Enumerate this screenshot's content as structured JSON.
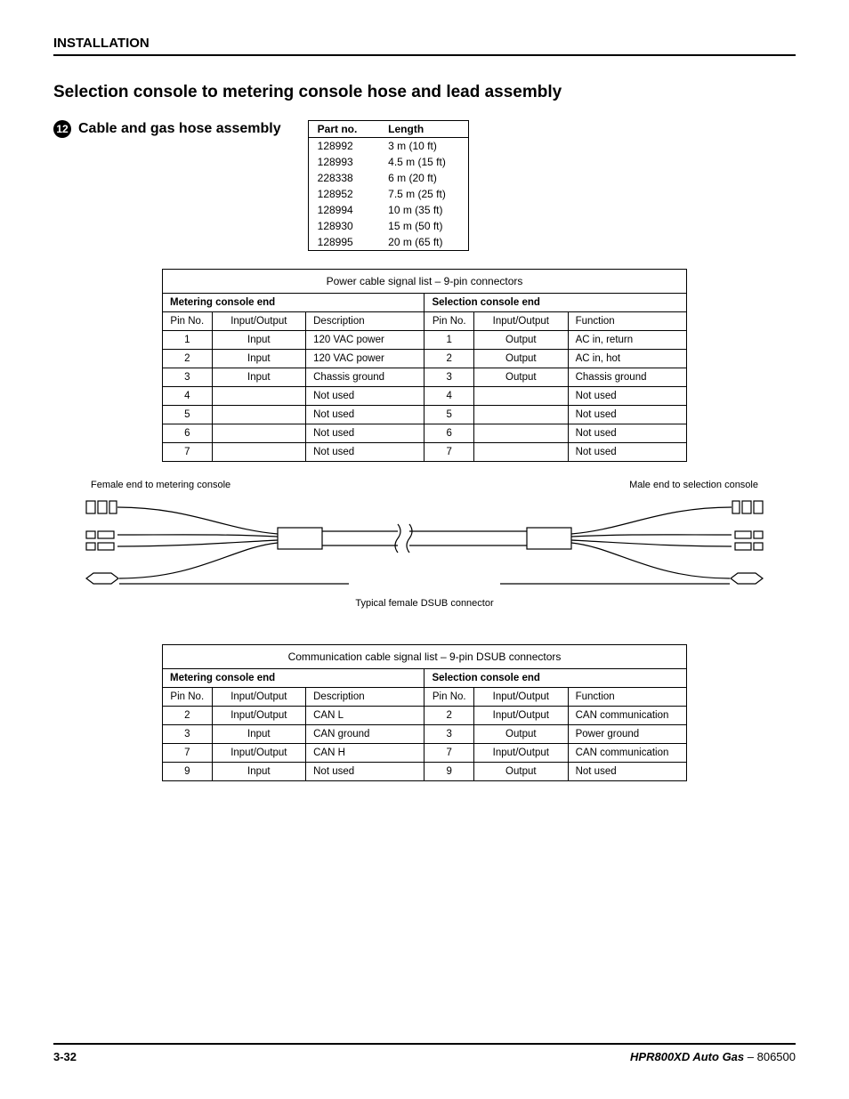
{
  "header": {
    "section": "INSTALLATION"
  },
  "titles": {
    "main": "Selection console to metering console hose and lead assembly",
    "sub_bullet": "12",
    "sub": "Cable and gas hose assembly"
  },
  "parts_table": {
    "headers": {
      "part": "Part no.",
      "length": "Length"
    },
    "rows": [
      {
        "part": "128992",
        "length": "3 m (10 ft)"
      },
      {
        "part": "128993",
        "length": "4.5 m (15 ft)"
      },
      {
        "part": "228338",
        "length": "6 m (20 ft)"
      },
      {
        "part": "128952",
        "length": "7.5 m (25 ft)"
      },
      {
        "part": "128994",
        "length": "10 m (35 ft)"
      },
      {
        "part": "128930",
        "length": "15 m (50 ft)"
      },
      {
        "part": "128995",
        "length": "20 m (65 ft)"
      }
    ]
  },
  "power_table": {
    "caption": "Power cable signal list – 9-pin connectors",
    "left_head": "Metering console end",
    "right_head": "Selection console end",
    "cols": {
      "pin": "Pin No.",
      "io": "Input/Output",
      "desc": "Description",
      "func": "Function"
    },
    "rows": [
      {
        "lp": "1",
        "lio": "Input",
        "ldesc": "120 VAC power",
        "rp": "1",
        "rio": "Output",
        "rfunc": "AC in, return"
      },
      {
        "lp": "2",
        "lio": "Input",
        "ldesc": "120 VAC power",
        "rp": "2",
        "rio": "Output",
        "rfunc": "AC in, hot"
      },
      {
        "lp": "3",
        "lio": "Input",
        "ldesc": "Chassis ground",
        "rp": "3",
        "rio": "Output",
        "rfunc": "Chassis ground"
      },
      {
        "lp": "4",
        "lio": "",
        "ldesc": "Not used",
        "rp": "4",
        "rio": "",
        "rfunc": "Not used"
      },
      {
        "lp": "5",
        "lio": "",
        "ldesc": "Not used",
        "rp": "5",
        "rio": "",
        "rfunc": "Not used"
      },
      {
        "lp": "6",
        "lio": "",
        "ldesc": "Not used",
        "rp": "6",
        "rio": "",
        "rfunc": "Not used"
      },
      {
        "lp": "7",
        "lio": "",
        "ldesc": "Not used",
        "rp": "7",
        "rio": "",
        "rfunc": "Not used"
      }
    ]
  },
  "diagram": {
    "left_label": "Female end to metering console",
    "right_label": "Male end to selection console",
    "center_label": "Typical female DSUB connector"
  },
  "comm_table": {
    "caption": "Communication cable signal list – 9-pin DSUB connectors",
    "left_head": "Metering console end",
    "right_head": "Selection console end",
    "cols": {
      "pin": "Pin No.",
      "io": "Input/Output",
      "desc": "Description",
      "func": "Function"
    },
    "rows": [
      {
        "lp": "2",
        "lio": "Input/Output",
        "ldesc": "CAN L",
        "rp": "2",
        "rio": "Input/Output",
        "rfunc": "CAN communication"
      },
      {
        "lp": "3",
        "lio": "Input",
        "ldesc": "CAN ground",
        "rp": "3",
        "rio": "Output",
        "rfunc": "Power ground"
      },
      {
        "lp": "7",
        "lio": "Input/Output",
        "ldesc": "CAN H",
        "rp": "7",
        "rio": "Input/Output",
        "rfunc": "CAN communication"
      },
      {
        "lp": "9",
        "lio": "Input",
        "ldesc": "Not used",
        "rp": "9",
        "rio": "Output",
        "rfunc": "Not used"
      }
    ]
  },
  "footer": {
    "page": "3-32",
    "product": "HPR800XD Auto Gas",
    "sep": " – ",
    "doc": "806500"
  }
}
